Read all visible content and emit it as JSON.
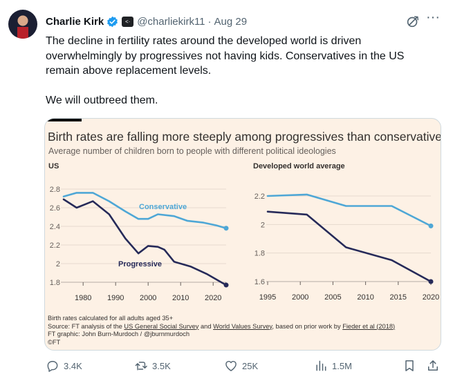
{
  "tweet": {
    "author_name": "Charlie Kirk",
    "handle": "@charliekirk11",
    "separator": "·",
    "date": "Aug 29",
    "paragraphs": [
      "The decline in fertility rates around the developed world is driven overwhelmingly by progressives not having kids. Conservatives in the US remain above replacement levels.",
      "We will outbreed them."
    ]
  },
  "figure": {
    "title": "Birth rates are falling more steeply among progressives than conservatives",
    "subtitle": "Average number of children born to people with different political ideologies",
    "footer": {
      "note": "Birth rates calculated for all adults aged 35+",
      "source_prefix": "Source: FT analysis of the ",
      "source_gss": "US General Social Survey",
      "source_and": " and ",
      "source_wvs": "World Values Survey",
      "source_mid": ", based on prior work by ",
      "source_fieder": "Fieder et al (2018)",
      "credit": "FT graphic: John Burn-Murdoch / @jburnmurdoch",
      "copyright": "©FT"
    }
  },
  "chart_data": [
    {
      "type": "line",
      "title": "US",
      "xlabel": "",
      "ylabel": "",
      "xticks": [
        1980,
        1990,
        2000,
        2010,
        2020
      ],
      "yticks": [
        1.8,
        2,
        2.2,
        2.4,
        2.6,
        2.8
      ],
      "xlim": [
        1974,
        2027
      ],
      "ylim": [
        1.73,
        2.86
      ],
      "grid": "horizontal",
      "series": [
        {
          "name": "Conservative",
          "color": "#4ea7d6",
          "x": [
            1974,
            1978,
            1983,
            1988,
            1993,
            1997,
            2000,
            2003,
            2008,
            2012,
            2017,
            2021,
            2024
          ],
          "y": [
            2.72,
            2.76,
            2.76,
            2.67,
            2.56,
            2.48,
            2.48,
            2.53,
            2.51,
            2.46,
            2.44,
            2.41,
            2.38
          ]
        },
        {
          "name": "Progressive",
          "color": "#262a59",
          "x": [
            1974,
            1978,
            1983,
            1988,
            1993,
            1997,
            2000,
            2003,
            2005,
            2008,
            2013,
            2018,
            2024
          ],
          "y": [
            2.69,
            2.6,
            2.67,
            2.53,
            2.27,
            2.11,
            2.19,
            2.18,
            2.15,
            2.02,
            1.97,
            1.89,
            1.77
          ]
        }
      ]
    },
    {
      "type": "line",
      "title": "Developed world average",
      "xlabel": "",
      "ylabel": "",
      "xticks": [
        1995,
        2000,
        2005,
        2010,
        2015,
        2020
      ],
      "yticks": [
        1.6,
        1.8,
        2,
        2.2
      ],
      "xlim": [
        1995,
        2020
      ],
      "ylim": [
        1.55,
        2.28
      ],
      "grid": "horizontal",
      "series": [
        {
          "name": "Conservative",
          "color": "#4ea7d6",
          "x": [
            1995,
            2001,
            2007,
            2014,
            2020
          ],
          "y": [
            2.2,
            2.21,
            2.13,
            2.13,
            1.99
          ]
        },
        {
          "name": "Progressive",
          "color": "#262a59",
          "x": [
            1995,
            2001,
            2007,
            2014,
            2020
          ],
          "y": [
            2.09,
            2.07,
            1.84,
            1.75,
            1.6
          ]
        }
      ]
    }
  ],
  "actions": {
    "replies": "3.4K",
    "reposts": "3.5K",
    "likes": "25K",
    "views": "1.5M"
  },
  "colors": {
    "verified": "#1d9bf0",
    "muted": "#536471",
    "card_bg": "#fdf1e5"
  }
}
